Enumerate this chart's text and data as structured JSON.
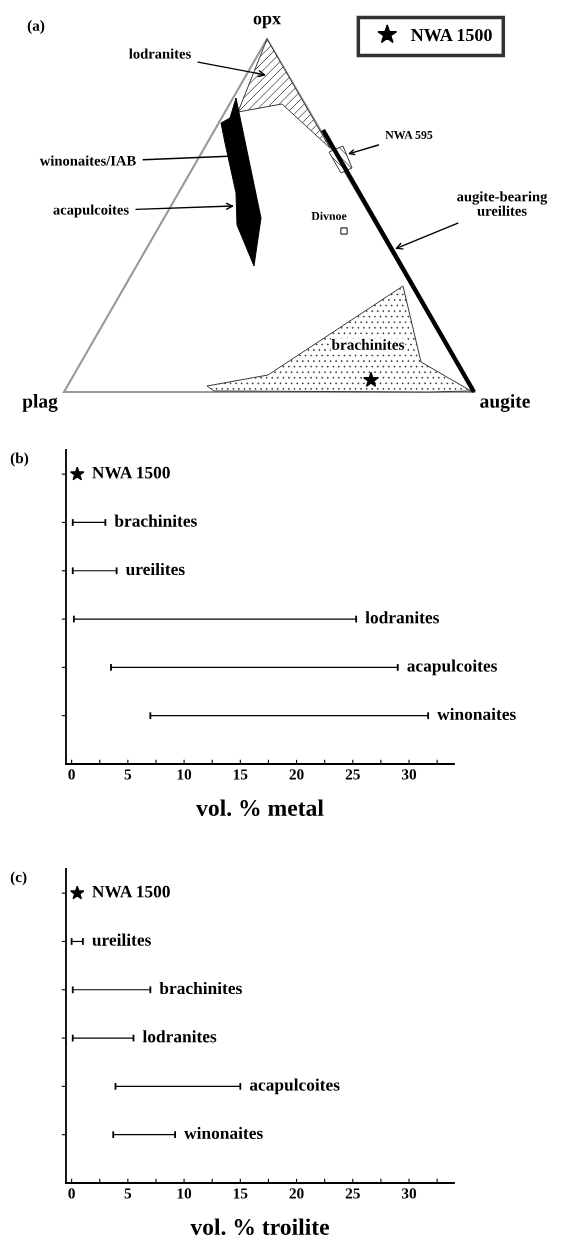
{
  "chart_data": [
    {
      "type": "other",
      "title": "(a)",
      "legend": "top right",
      "series": [
        {
          "name": "NWA 1500",
          "type": "scatter",
          "marker": "star",
          "color": "#000000"
        }
      ],
      "annotations": [
        "opx",
        "plag",
        "augite",
        "lodranites",
        "winonaites/IAB",
        "acapulcoites",
        "NWA 595",
        "augite-bearing\nureilites",
        "Divnoe",
        "brachinites"
      ]
    },
    {
      "type": "bar",
      "title": "(b)",
      "orientation": "horizontal",
      "xlabel": "vol. % metal",
      "tick_labels": "x",
      "grid": false,
      "categories": [
        "NWA 1500",
        "brachinites",
        "ureilites",
        "lodranites",
        "acapulcoites",
        "winonaites"
      ],
      "xlim": [
        -0.5,
        34
      ],
      "xticks": [
        0,
        {
          "value": 2.5,
          "label": null
        },
        5,
        {
          "value": 7.5,
          "label": null
        },
        10,
        {
          "value": 12.5,
          "label": null
        },
        15,
        {
          "value": 17.5,
          "label": null
        },
        20,
        {
          "value": 22.5,
          "label": null
        },
        25,
        {
          "value": 27.5,
          "label": null
        },
        30,
        {
          "value": 32.5,
          "label": null
        }
      ],
      "series": [
        {
          "type": "bar",
          "color": "#000000",
          "base": [
            null,
            0.1,
            0.1,
            0.2,
            3.5,
            7.0
          ],
          "values": [
            null,
            2.9,
            3.9,
            25.1,
            25.5,
            24.7
          ]
        },
        {
          "type": "scatter",
          "marker": "star",
          "color": "#000000",
          "values": [
            0.5,
            null,
            null,
            null,
            null,
            null
          ]
        }
      ]
    },
    {
      "type": "bar",
      "title": "(c)",
      "orientation": "horizontal",
      "xlabel": "vol. % troilite",
      "tick_labels": "x",
      "grid": false,
      "categories": [
        "NWA 1500",
        "ureilites",
        "brachinites",
        "lodranites",
        "acapulcoites",
        "winonaites"
      ],
      "xlim": [
        -0.5,
        34
      ],
      "xticks": [
        0,
        {
          "value": 2.5,
          "label": null
        },
        5,
        {
          "value": 7.5,
          "label": null
        },
        10,
        {
          "value": 12.5,
          "label": null
        },
        15,
        {
          "value": 17.5,
          "label": null
        },
        20,
        {
          "value": 22.5,
          "label": null
        },
        25,
        {
          "value": 27.5,
          "label": null
        },
        30,
        {
          "value": 32.5,
          "label": null
        }
      ],
      "series": [
        {
          "type": "bar",
          "color": "#000000",
          "base": [
            null,
            0.0,
            0.1,
            0.1,
            3.9,
            3.7
          ],
          "values": [
            null,
            1.0,
            6.9,
            5.4,
            11.1,
            5.5
          ]
        },
        {
          "type": "scatter",
          "marker": "star",
          "color": "#000000",
          "values": [
            0.5,
            null,
            null,
            null,
            null,
            null
          ]
        }
      ]
    }
  ]
}
